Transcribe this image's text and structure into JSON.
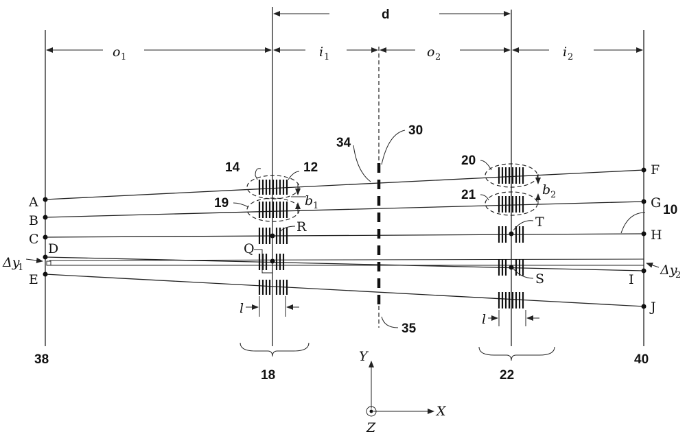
{
  "dimensions": {
    "d": "d",
    "o1": "o",
    "o1_sub": "1",
    "i1": "i",
    "i1_sub": "1",
    "o2": "o",
    "o2_sub": "2",
    "i2": "i",
    "i2_sub": "2"
  },
  "refs": {
    "r10": "10",
    "r12": "12",
    "r14": "14",
    "r18": "18",
    "r19": "19",
    "r20": "20",
    "r21": "21",
    "r22": "22",
    "r30": "30",
    "r34": "34",
    "r35": "35",
    "r38": "38",
    "r40": "40"
  },
  "points": {
    "A": "A",
    "B": "B",
    "C": "C",
    "D": "D",
    "E": "E",
    "F": "F",
    "G": "G",
    "H": "H",
    "I": "I",
    "J": "J",
    "Q": "Q",
    "R": "R",
    "S": "S",
    "T": "T"
  },
  "symbols": {
    "b1": "b",
    "b1_sub": "1",
    "b2": "b",
    "b2_sub": "2",
    "l_left": "l",
    "l_right": "l",
    "dy1": "Δy",
    "dy1_sub": "1",
    "dy2": "Δy",
    "dy2_sub": "2"
  },
  "axes": {
    "x": "X",
    "y": "Y",
    "z": "Z"
  }
}
